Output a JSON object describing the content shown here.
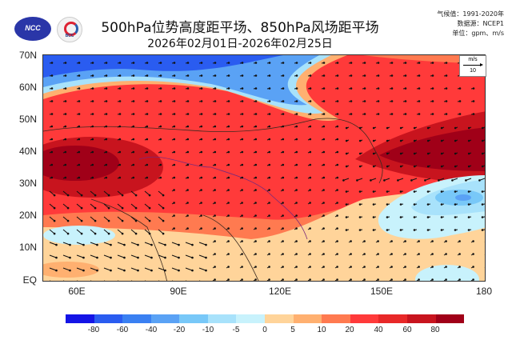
{
  "header": {
    "title": "500hPa位势高度距平场、850hPa风场距平场",
    "subtitle": "2026年02月01日-2026年02月25日",
    "logos": [
      {
        "name": "NCC",
        "text": "NCC"
      },
      {
        "name": "BCC",
        "text": "BCC"
      }
    ],
    "meta": {
      "climatology": "气候值：1991-2020年",
      "source": "数据源：NCEP1",
      "units": "单位：gpm、m/s"
    }
  },
  "map": {
    "lat_labels": [
      "70N",
      "60N",
      "50N",
      "40N",
      "30N",
      "20N",
      "10N",
      "EQ"
    ],
    "lon_labels": [
      "60E",
      "90E",
      "120E",
      "150E",
      "180"
    ],
    "reference_vector": {
      "unit": "m/s",
      "value": "10"
    }
  },
  "colorbar": {
    "colors": [
      "#1414e6",
      "#2a5cf0",
      "#3a80f2",
      "#5aa2f5",
      "#78c8f8",
      "#a8e2fb",
      "#c8f2fc",
      "#ffd49a",
      "#ffb070",
      "#ff7a50",
      "#ff3a3a",
      "#e82828",
      "#c8141e",
      "#a00018"
    ],
    "labels": [
      "-80",
      "-60",
      "-40",
      "-20",
      "-10",
      "-5",
      "0",
      "5",
      "10",
      "20",
      "40",
      "60",
      "80"
    ]
  }
}
